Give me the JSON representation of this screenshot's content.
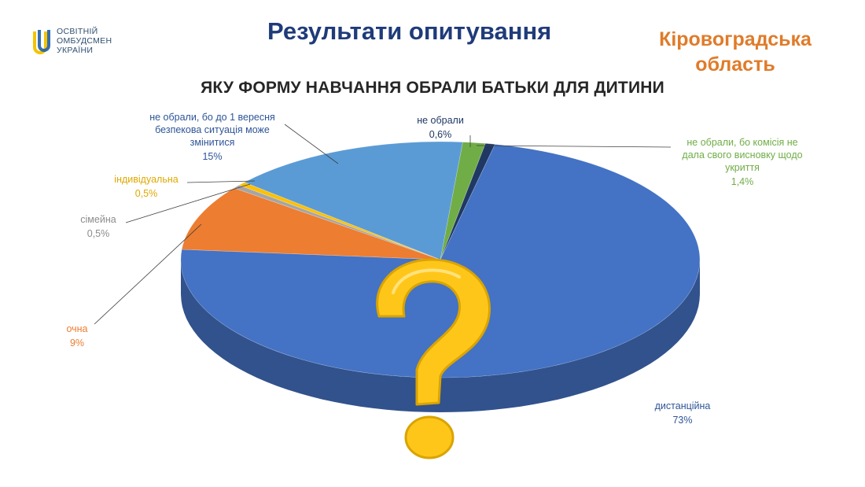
{
  "header": {
    "logo_lines": [
      "ОСВІТНІЙ",
      "ОМБУДСМЕН",
      "УКРАЇНИ"
    ],
    "title": "Результати опитування",
    "region_lines": [
      "Кіровоградська",
      "область"
    ]
  },
  "colors": {
    "title": "#1f3b7a",
    "region": "#e07b2a",
    "question_mark": "#ffc61a"
  },
  "chart_data": {
    "type": "pie",
    "title": "ЯКУ ФОРМУ НАВЧАННЯ ОБРАЛИ БАТЬКИ ДЛЯ ДИТИНИ",
    "style": "3d",
    "slices": [
      {
        "label": "не обрали",
        "label_lines": [
          "не обрали"
        ],
        "value_text": "0,6%",
        "value": 0.6,
        "color": "#1f3864",
        "label_color": "#1f3864"
      },
      {
        "label": "дистанційна",
        "label_lines": [
          "дистанційна"
        ],
        "value_text": "73%",
        "value": 73,
        "color": "#4472c4",
        "label_color": "#2e5597"
      },
      {
        "label": "очна",
        "label_lines": [
          "очна"
        ],
        "value_text": "9%",
        "value": 9,
        "color": "#ed7d31",
        "label_color": "#ed7d31"
      },
      {
        "label": "сімейна",
        "label_lines": [
          "сімейна"
        ],
        "value_text": "0,5%",
        "value": 0.5,
        "color": "#a5a5a5",
        "label_color": "#8c8c8c"
      },
      {
        "label": "індивідуальна",
        "label_lines": [
          "індивідуальна"
        ],
        "value_text": "0,5%",
        "value": 0.5,
        "color": "#ffc000",
        "label_color": "#e0a800"
      },
      {
        "label": "не обрали, бо до 1 вересня безпекова ситуація може змінитися",
        "label_lines": [
          "не обрали, бо до 1 вересня",
          "безпекова ситуація може",
          "змінитися"
        ],
        "value_text": "15%",
        "value": 15,
        "color": "#5b9bd5",
        "label_color": "#2e5597"
      },
      {
        "label": "не обрали, бо комісія не дала свого висновку щодо укриття",
        "label_lines": [
          "не обрали, бо комісія не",
          "дала свого висновку щодо",
          "укриття"
        ],
        "value_text": "1,4%",
        "value": 1.4,
        "color": "#70ad47",
        "label_color": "#70ad47"
      }
    ]
  }
}
